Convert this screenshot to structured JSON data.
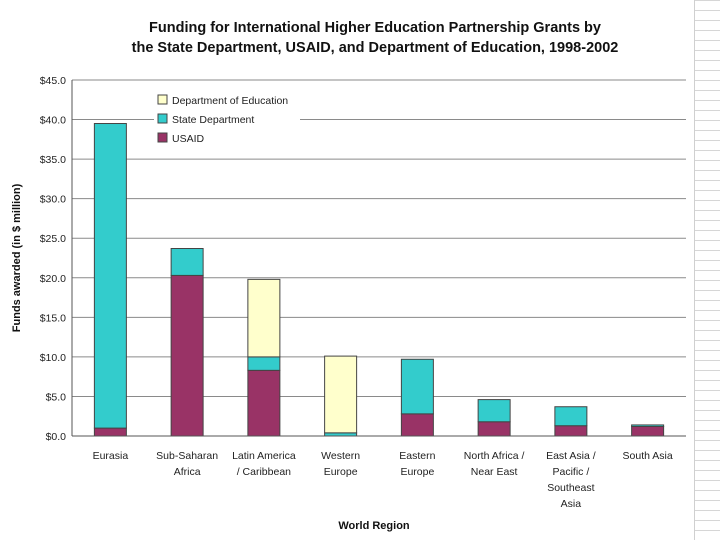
{
  "chart_data": {
    "type": "bar",
    "stacked": true,
    "title_line1": "Funding for International Higher Education Partnership Grants by",
    "title_line2": "the State Department, USAID, and Department of Education, 1998-2002",
    "xlabel": "World Region",
    "ylabel": "Funds awarded (in $ million)",
    "ylim": [
      0,
      45
    ],
    "yticks": [
      "$0.0",
      "$5.0",
      "$10.0",
      "$15.0",
      "$20.0",
      "$25.0",
      "$30.0",
      "$35.0",
      "$40.0",
      "$45.0"
    ],
    "categories": [
      [
        "Eurasia"
      ],
      [
        "Sub-Saharan",
        "Africa"
      ],
      [
        "Latin America",
        "/ Caribbean"
      ],
      [
        "Western",
        "Europe"
      ],
      [
        "Eastern",
        "Europe"
      ],
      [
        "North Africa /",
        "Near East"
      ],
      [
        "East Asia /",
        "Pacific /",
        "Southeast",
        "Asia"
      ],
      [
        "South Asia"
      ]
    ],
    "series": [
      {
        "name": "USAID",
        "color": "#993366",
        "values": [
          1.0,
          20.3,
          8.3,
          0.0,
          2.8,
          1.8,
          1.3,
          1.2
        ]
      },
      {
        "name": "State Department",
        "color": "#33CCCC",
        "values": [
          38.5,
          3.4,
          1.7,
          0.4,
          6.9,
          2.8,
          2.4,
          0.2
        ]
      },
      {
        "name": "Department of Education",
        "color": "#FFFFCC",
        "values": [
          0.0,
          0.0,
          9.8,
          9.7,
          0.0,
          0.0,
          0.0,
          0.0
        ]
      }
    ],
    "legend": [
      "Department of Education",
      "State Department",
      "USAID"
    ],
    "legend_position": "top-left",
    "grid": true
  }
}
